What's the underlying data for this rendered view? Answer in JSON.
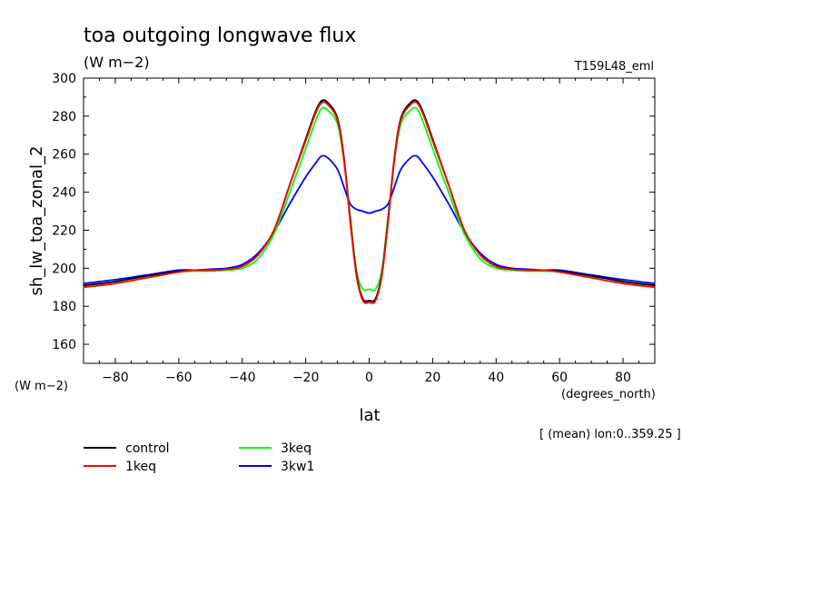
{
  "chart_data": {
    "type": "line",
    "title": "toa outgoing longwave flux",
    "title_units": "(W m−2)",
    "run_id": "T159L48_eml",
    "ylabel": "sh_lw_toa_zonal_2",
    "ylabel_units": "(W m−2)",
    "xlabel": "lat",
    "xlabel_units": "(degrees_north)",
    "averaging_note": "[ (mean) lon:0..359.25 ]",
    "xlim": [
      -90,
      90
    ],
    "ylim": [
      150,
      300
    ],
    "x_ticks": [
      -80,
      -60,
      -40,
      -20,
      0,
      20,
      40,
      60,
      80
    ],
    "y_ticks": [
      160,
      180,
      200,
      220,
      240,
      260,
      280,
      300
    ],
    "legend_position": "below-left",
    "x": [
      -90,
      -80,
      -70,
      -60,
      -55,
      -50,
      -45,
      -40,
      -35,
      -30,
      -25,
      -20,
      -17,
      -15,
      -13,
      -10,
      -8,
      -6,
      -4,
      -2,
      0,
      2,
      4,
      6,
      8,
      10,
      13,
      15,
      17,
      20,
      25,
      30,
      35,
      40,
      45,
      50,
      55,
      60,
      70,
      80,
      90
    ],
    "series": [
      {
        "name": "control",
        "color": "#000000",
        "values": [
          191,
          193,
          196,
          198.5,
          199,
          199,
          199.5,
          201,
          207,
          220,
          244,
          268,
          282,
          288,
          287,
          279,
          259,
          226,
          197,
          184,
          183,
          184,
          197,
          226,
          259,
          279,
          287,
          288,
          282,
          268,
          244,
          220,
          207,
          201,
          199.5,
          199,
          199,
          198.5,
          196,
          193,
          191
        ]
      },
      {
        "name": "1keq",
        "color": "#ff0000",
        "values": [
          190,
          192,
          195,
          198,
          199,
          199,
          199.5,
          201,
          207,
          220,
          244,
          267,
          281,
          287,
          286,
          278,
          258,
          225,
          196,
          183,
          182,
          183,
          196,
          225,
          258,
          278,
          286,
          287,
          281,
          267,
          244,
          220,
          207,
          201,
          199.5,
          199,
          199,
          198,
          195,
          192,
          190
        ]
      },
      {
        "name": "3keq",
        "color": "#00ff00",
        "values": [
          190,
          192,
          195,
          198,
          198.5,
          198.5,
          199,
          200,
          205,
          218,
          240,
          263,
          277,
          284,
          283,
          276,
          257,
          228,
          199,
          189,
          189,
          189,
          199,
          228,
          257,
          276,
          283,
          284,
          277,
          263,
          240,
          218,
          205,
          200,
          199,
          198.5,
          198.5,
          198,
          195,
          192,
          190
        ]
      },
      {
        "name": "3kw1",
        "color": "#0000ff",
        "values": [
          192,
          194,
          196.5,
          199,
          199,
          199.5,
          200,
          202,
          208,
          219,
          234,
          248,
          255,
          259,
          258,
          252,
          243,
          234,
          231,
          230,
          229,
          230,
          231,
          234,
          243,
          252,
          258,
          259,
          255,
          248,
          234,
          219,
          208,
          202,
          200,
          199.5,
          199,
          199,
          196.5,
          194,
          192
        ]
      }
    ]
  }
}
